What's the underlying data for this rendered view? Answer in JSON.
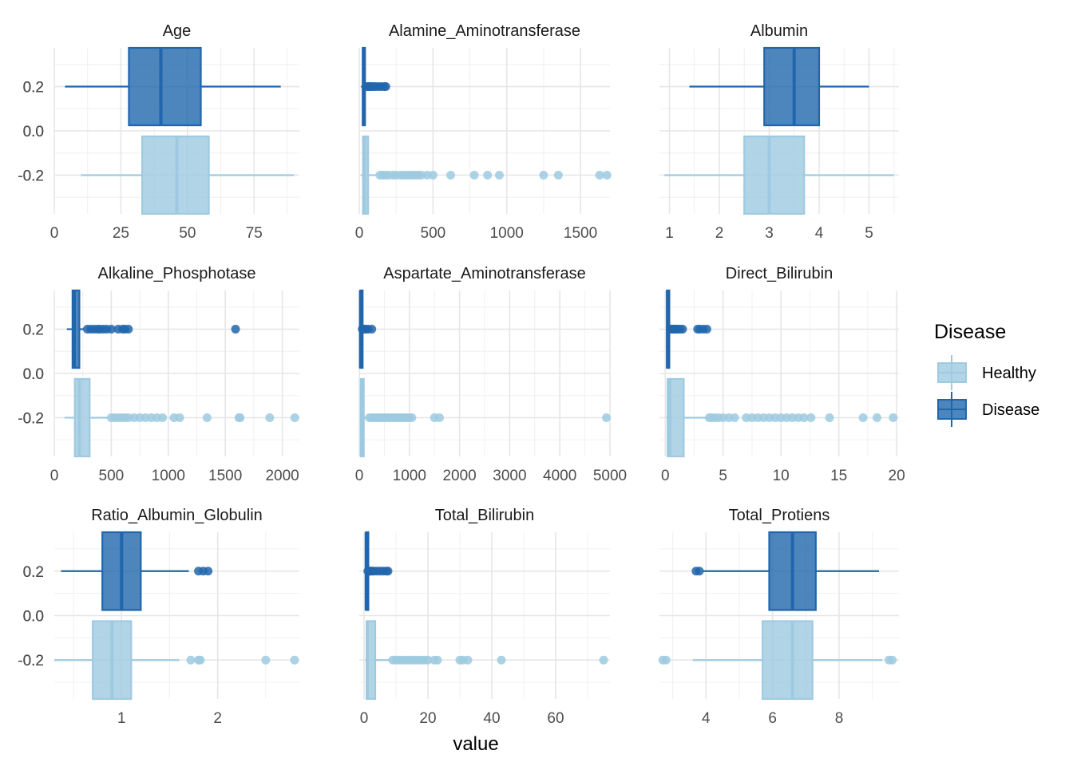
{
  "chart_data": {
    "type": "boxplot",
    "xlabel": "value",
    "legend": {
      "title": "Disease",
      "position": "right",
      "entries": [
        {
          "name": "Healthy",
          "color": "#9ECAE1"
        },
        {
          "name": "Disease",
          "color": "#2166AC"
        }
      ]
    },
    "y_ticks": [
      "0.2",
      "0.0",
      "-0.2"
    ],
    "y_tick_values": [
      0.2,
      0.0,
      -0.2
    ],
    "ylim": [
      -0.375,
      0.375
    ],
    "grid": true,
    "panels": [
      {
        "title": "Age",
        "xlim": [
          0,
          92
        ],
        "x_ticks": [
          0,
          25,
          50,
          75
        ],
        "x_ticklabels": [
          "0",
          "25",
          "50",
          "75"
        ],
        "boxes": {
          "Disease": {
            "y": 0.2,
            "min": 4,
            "q1": 28,
            "median": 40,
            "q3": 55,
            "max": 85,
            "outliers": []
          },
          "Healthy": {
            "y": -0.2,
            "min": 10,
            "q1": 33,
            "median": 46,
            "q3": 58,
            "max": 90,
            "outliers": []
          }
        }
      },
      {
        "title": "Alamine_Aminotransferase",
        "xlim": [
          0,
          1700
        ],
        "x_ticks": [
          0,
          500,
          1000,
          1500
        ],
        "x_ticklabels": [
          "0",
          "500",
          "1000",
          "1500"
        ],
        "boxes": {
          "Disease": {
            "y": 0.2,
            "min": 12,
            "q1": 23,
            "median": 30,
            "q3": 35,
            "max": 50,
            "outliers": [
              55,
              62,
              70,
              80,
              95,
              110,
              130,
              150,
              170,
              180
            ]
          },
          "Healthy": {
            "y": -0.2,
            "min": 10,
            "q1": 25,
            "median": 35,
            "q3": 60,
            "max": 115,
            "outliers": [
              140,
              160,
              180,
              200,
              230,
              250,
              280,
              300,
              320,
              340,
              360,
              380,
              400,
              420,
              460,
              500,
              620,
              780,
              870,
              950,
              1250,
              1350,
              1630,
              1680
            ]
          }
        }
      },
      {
        "title": "Albumin",
        "xlim": [
          0.8,
          5.6
        ],
        "x_ticks": [
          1,
          2,
          3,
          4,
          5
        ],
        "x_ticklabels": [
          "1",
          "2",
          "3",
          "4",
          "5"
        ],
        "boxes": {
          "Disease": {
            "y": 0.2,
            "min": 1.4,
            "q1": 2.9,
            "median": 3.5,
            "q3": 4.0,
            "max": 5.0,
            "outliers": []
          },
          "Healthy": {
            "y": -0.2,
            "min": 0.9,
            "q1": 2.5,
            "median": 3.0,
            "q3": 3.7,
            "max": 5.5,
            "outliers": []
          }
        }
      },
      {
        "title": "Alkaline_Phosphotase",
        "xlim": [
          0,
          2150
        ],
        "x_ticks": [
          0,
          500,
          1000,
          1500,
          2000
        ],
        "x_ticklabels": [
          "0",
          "500",
          "1000",
          "1500",
          "2000"
        ],
        "boxes": {
          "Disease": {
            "y": 0.2,
            "min": 110,
            "q1": 160,
            "median": 175,
            "q3": 220,
            "max": 260,
            "outliers": [
              290,
              320,
              350,
              380,
              400,
              430,
              460,
              500,
              560,
              600,
              620,
              650,
              1590
            ]
          },
          "Healthy": {
            "y": -0.2,
            "min": 90,
            "q1": 180,
            "median": 220,
            "q3": 310,
            "max": 470,
            "outliers": [
              500,
              530,
              560,
              590,
              620,
              650,
              700,
              750,
              800,
              850,
              900,
              950,
              1050,
              1100,
              1340,
              1620,
              1630,
              1890,
              2110
            ]
          }
        }
      },
      {
        "title": "Aspartate_Aminotransferase",
        "xlim": [
          0,
          5000
        ],
        "x_ticks": [
          0,
          1000,
          2000,
          3000,
          4000,
          5000
        ],
        "x_ticklabels": [
          "0",
          "1000",
          "2000",
          "3000",
          "4000",
          "5000"
        ],
        "boxes": {
          "Disease": {
            "y": 0.2,
            "min": 10,
            "q1": 20,
            "median": 26,
            "q3": 32,
            "max": 50,
            "outliers": [
              60,
              80,
              100,
              130,
              180,
              250
            ]
          },
          "Healthy": {
            "y": -0.2,
            "min": 10,
            "q1": 30,
            "median": 45,
            "q3": 90,
            "max": 180,
            "outliers": [
              200,
              250,
              300,
              350,
              400,
              450,
              500,
              550,
              600,
              650,
              700,
              750,
              800,
              850,
              900,
              950,
              1000,
              1050,
              1500,
              1600,
              4930
            ]
          }
        }
      },
      {
        "title": "Direct_Bilirubin",
        "xlim": [
          -0.5,
          20.2
        ],
        "x_ticks": [
          0,
          5,
          10,
          15,
          20
        ],
        "x_ticklabels": [
          "0",
          "5",
          "10",
          "15",
          "20"
        ],
        "boxes": {
          "Disease": {
            "y": 0.2,
            "min": 0.1,
            "q1": 0.15,
            "median": 0.2,
            "q3": 0.25,
            "max": 0.4,
            "outliers": [
              0.5,
              0.6,
              0.7,
              0.8,
              0.9,
              1.0,
              1.1,
              1.3,
              1.5,
              2.8,
              3.0,
              3.3,
              3.6
            ]
          },
          "Healthy": {
            "y": -0.2,
            "min": 0.1,
            "q1": 0.2,
            "median": 0.4,
            "q3": 1.6,
            "max": 3.6,
            "outliers": [
              3.8,
              4.0,
              4.3,
              4.6,
              5.0,
              5.5,
              6.0,
              7.0,
              7.5,
              8.0,
              8.5,
              9.0,
              9.5,
              10.0,
              10.5,
              11.0,
              11.5,
              12.0,
              12.6,
              14.2,
              17.1,
              18.3,
              19.7
            ]
          }
        }
      },
      {
        "title": "Ratio_Albumin_Globulin",
        "xlim": [
          0.3,
          2.85
        ],
        "x_ticks": [
          1,
          2
        ],
        "x_ticklabels": [
          "1",
          "2"
        ],
        "boxes": {
          "Disease": {
            "y": 0.2,
            "min": 0.37,
            "q1": 0.8,
            "median": 1.0,
            "q3": 1.2,
            "max": 1.7,
            "outliers": [
              1.8,
              1.85,
              1.9
            ]
          },
          "Healthy": {
            "y": -0.2,
            "min": 0.3,
            "q1": 0.7,
            "median": 0.9,
            "q3": 1.1,
            "max": 1.6,
            "outliers": [
              1.72,
              1.8,
              1.82,
              2.5,
              2.8
            ]
          }
        }
      },
      {
        "title": "Total_Bilirubin",
        "xlim": [
          -1.5,
          77
        ],
        "x_ticks": [
          0,
          20,
          40,
          60
        ],
        "x_ticklabels": [
          "0",
          "20",
          "40",
          "60"
        ],
        "boxes": {
          "Disease": {
            "y": 0.2,
            "min": 0.4,
            "q1": 0.6,
            "median": 0.7,
            "q3": 0.8,
            "max": 1.0,
            "outliers": [
              1.2,
              1.5,
              1.8,
              2.0,
              2.5,
              3.0,
              4.0,
              5.0,
              6.0,
              7.0,
              7.5
            ]
          },
          "Healthy": {
            "y": -0.2,
            "min": 0.4,
            "q1": 0.8,
            "median": 1.0,
            "q3": 3.5,
            "max": 8.5,
            "outliers": [
              9,
              10,
              11,
              12,
              13,
              14,
              15,
              16,
              17,
              18,
              19,
              20,
              22,
              23,
              30,
              31,
              32.5,
              43,
              75
            ]
          }
        }
      },
      {
        "title": "Total_Protiens",
        "xlim": [
          2.6,
          9.8
        ],
        "x_ticks": [
          4,
          6,
          8
        ],
        "x_ticklabels": [
          "4",
          "6",
          "8"
        ],
        "boxes": {
          "Disease": {
            "y": 0.2,
            "min": 3.9,
            "q1": 5.9,
            "median": 6.6,
            "q3": 7.3,
            "max": 9.2,
            "outliers": [
              3.7,
              3.8
            ]
          },
          "Healthy": {
            "y": -0.2,
            "min": 3.6,
            "q1": 5.7,
            "median": 6.6,
            "q3": 7.2,
            "max": 9.3,
            "outliers": [
              2.7,
              2.8,
              9.5,
              9.6
            ]
          }
        }
      }
    ]
  }
}
